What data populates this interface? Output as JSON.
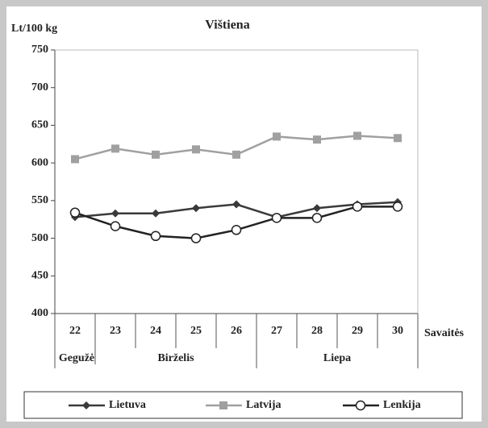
{
  "chart_data": {
    "type": "line",
    "title": "Vištiena",
    "y_label": "Lt/100 kg",
    "x_label": "Savaitės",
    "categories": [
      "22",
      "23",
      "24",
      "25",
      "26",
      "27",
      "28",
      "29",
      "30"
    ],
    "months": [
      "Gegužė",
      "Birželis",
      "Liepa"
    ],
    "series": [
      {
        "name": "Lietuva",
        "color": "#3a3a3a",
        "marker": "diamond",
        "values": [
          528,
          533,
          533,
          540,
          545,
          528,
          540,
          545,
          548
        ]
      },
      {
        "name": "Latvija",
        "color": "#a0a0a0",
        "marker": "square",
        "values": [
          605,
          619,
          611,
          618,
          611,
          635,
          631,
          636,
          633
        ]
      },
      {
        "name": "Lenkija",
        "color": "#222222",
        "marker": "circle",
        "values": [
          534,
          516,
          503,
          500,
          511,
          527,
          527,
          542,
          542
        ]
      }
    ],
    "ylim": [
      400,
      750
    ],
    "yticks": [
      400,
      450,
      500,
      550,
      600,
      650,
      700,
      750
    ],
    "grid": false,
    "legend": "bottom"
  }
}
